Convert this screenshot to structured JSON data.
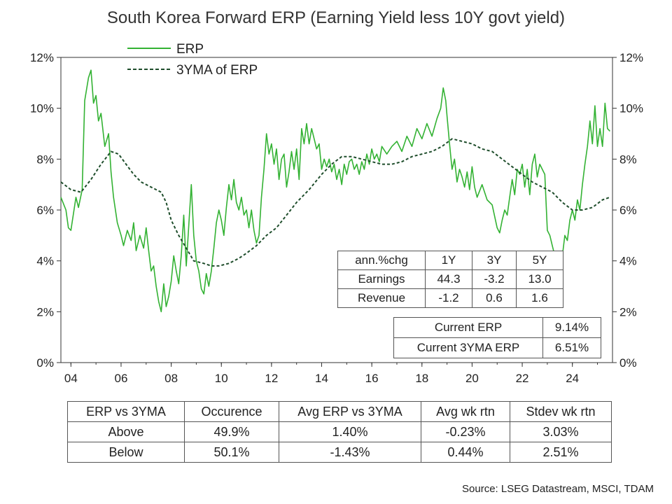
{
  "chart_data": {
    "type": "line",
    "title": "South Korea Forward ERP (Earning Yield less 10Y govt yield)",
    "x_ticks": [
      "04",
      "06",
      "08",
      "10",
      "12",
      "14",
      "16",
      "18",
      "20",
      "22",
      "24"
    ],
    "x_range": [
      2003.6,
      2025.6
    ],
    "y_ticks": [
      "0%",
      "2%",
      "4%",
      "6%",
      "8%",
      "10%",
      "12%"
    ],
    "ylim": [
      0,
      12
    ],
    "legend_position": "top-left",
    "series": [
      {
        "name": "ERP",
        "color": "#33b233",
        "style": "solid",
        "points": [
          [
            2003.6,
            6.5
          ],
          [
            2003.8,
            6.0
          ],
          [
            2003.9,
            5.3
          ],
          [
            2004.0,
            5.2
          ],
          [
            2004.2,
            6.5
          ],
          [
            2004.3,
            6.1
          ],
          [
            2004.45,
            6.8
          ],
          [
            2004.55,
            10.3
          ],
          [
            2004.7,
            11.2
          ],
          [
            2004.8,
            11.5
          ],
          [
            2004.9,
            10.2
          ],
          [
            2005.0,
            10.5
          ],
          [
            2005.1,
            9.5
          ],
          [
            2005.2,
            9.8
          ],
          [
            2005.35,
            8.5
          ],
          [
            2005.5,
            9.0
          ],
          [
            2005.6,
            7.5
          ],
          [
            2005.7,
            6.5
          ],
          [
            2005.85,
            5.5
          ],
          [
            2006.0,
            5.0
          ],
          [
            2006.1,
            4.6
          ],
          [
            2006.25,
            5.2
          ],
          [
            2006.4,
            4.8
          ],
          [
            2006.5,
            5.5
          ],
          [
            2006.6,
            4.4
          ],
          [
            2006.75,
            5.0
          ],
          [
            2006.9,
            4.5
          ],
          [
            2007.0,
            5.3
          ],
          [
            2007.1,
            4.4
          ],
          [
            2007.2,
            3.6
          ],
          [
            2007.3,
            3.8
          ],
          [
            2007.4,
            3.0
          ],
          [
            2007.5,
            2.4
          ],
          [
            2007.6,
            2.0
          ],
          [
            2007.7,
            3.1
          ],
          [
            2007.8,
            2.2
          ],
          [
            2007.9,
            2.6
          ],
          [
            2008.0,
            3.2
          ],
          [
            2008.1,
            4.2
          ],
          [
            2008.2,
            3.6
          ],
          [
            2008.3,
            3.1
          ],
          [
            2008.4,
            4.2
          ],
          [
            2008.5,
            5.8
          ],
          [
            2008.6,
            3.8
          ],
          [
            2008.7,
            5.4
          ],
          [
            2008.8,
            7.0
          ],
          [
            2008.9,
            5.0
          ],
          [
            2009.0,
            4.0
          ],
          [
            2009.1,
            3.6
          ],
          [
            2009.2,
            2.9
          ],
          [
            2009.3,
            2.7
          ],
          [
            2009.4,
            3.5
          ],
          [
            2009.5,
            3.0
          ],
          [
            2009.6,
            3.6
          ],
          [
            2009.7,
            4.5
          ],
          [
            2009.8,
            5.5
          ],
          [
            2009.9,
            6.0
          ],
          [
            2010.0,
            5.6
          ],
          [
            2010.1,
            5.0
          ],
          [
            2010.2,
            6.1
          ],
          [
            2010.3,
            7.0
          ],
          [
            2010.4,
            6.4
          ],
          [
            2010.5,
            7.2
          ],
          [
            2010.6,
            6.3
          ],
          [
            2010.7,
            6.0
          ],
          [
            2010.8,
            6.5
          ],
          [
            2010.9,
            5.8
          ],
          [
            2011.0,
            6.0
          ],
          [
            2011.1,
            5.3
          ],
          [
            2011.2,
            6.0
          ],
          [
            2011.3,
            5.2
          ],
          [
            2011.4,
            4.7
          ],
          [
            2011.5,
            5.0
          ],
          [
            2011.6,
            6.5
          ],
          [
            2011.7,
            7.6
          ],
          [
            2011.8,
            9.0
          ],
          [
            2011.9,
            8.2
          ],
          [
            2012.0,
            8.6
          ],
          [
            2012.1,
            7.8
          ],
          [
            2012.2,
            8.4
          ],
          [
            2012.3,
            7.2
          ],
          [
            2012.4,
            8.0
          ],
          [
            2012.5,
            8.2
          ],
          [
            2012.6,
            6.9
          ],
          [
            2012.7,
            7.5
          ],
          [
            2012.8,
            8.3
          ],
          [
            2012.9,
            7.6
          ],
          [
            2013.0,
            8.4
          ],
          [
            2013.1,
            7.2
          ],
          [
            2013.2,
            9.2
          ],
          [
            2013.3,
            8.6
          ],
          [
            2013.4,
            9.4
          ],
          [
            2013.5,
            8.6
          ],
          [
            2013.6,
            9.2
          ],
          [
            2013.7,
            8.8
          ],
          [
            2013.8,
            8.4
          ],
          [
            2013.9,
            8.6
          ],
          [
            2014.0,
            7.6
          ],
          [
            2014.1,
            8.0
          ],
          [
            2014.2,
            7.7
          ],
          [
            2014.3,
            8.0
          ],
          [
            2014.4,
            7.5
          ],
          [
            2014.5,
            7.8
          ],
          [
            2014.6,
            7.2
          ],
          [
            2014.7,
            7.6
          ],
          [
            2014.8,
            7.0
          ],
          [
            2014.9,
            7.8
          ],
          [
            2015.0,
            7.4
          ],
          [
            2015.1,
            7.9
          ],
          [
            2015.2,
            8.0
          ],
          [
            2015.3,
            7.6
          ],
          [
            2015.4,
            7.8
          ],
          [
            2015.5,
            7.4
          ],
          [
            2015.6,
            7.9
          ],
          [
            2015.7,
            7.6
          ],
          [
            2015.8,
            8.2
          ],
          [
            2015.9,
            7.8
          ],
          [
            2016.0,
            8.4
          ],
          [
            2016.1,
            8.0
          ],
          [
            2016.2,
            8.2
          ],
          [
            2016.3,
            7.9
          ],
          [
            2016.4,
            8.5
          ],
          [
            2016.6,
            8.2
          ],
          [
            2016.8,
            8.5
          ],
          [
            2017.0,
            8.7
          ],
          [
            2017.2,
            8.3
          ],
          [
            2017.4,
            8.9
          ],
          [
            2017.6,
            8.5
          ],
          [
            2017.8,
            9.2
          ],
          [
            2018.0,
            8.8
          ],
          [
            2018.2,
            9.4
          ],
          [
            2018.4,
            8.9
          ],
          [
            2018.6,
            9.6
          ],
          [
            2018.75,
            10.0
          ],
          [
            2018.85,
            10.8
          ],
          [
            2018.95,
            10.3
          ],
          [
            2019.0,
            9.7
          ],
          [
            2019.1,
            8.6
          ],
          [
            2019.2,
            7.6
          ],
          [
            2019.3,
            8.0
          ],
          [
            2019.4,
            7.1
          ],
          [
            2019.5,
            7.6
          ],
          [
            2019.6,
            7.3
          ],
          [
            2019.7,
            6.9
          ],
          [
            2019.8,
            7.5
          ],
          [
            2019.9,
            6.8
          ],
          [
            2020.0,
            7.7
          ],
          [
            2020.1,
            6.9
          ],
          [
            2020.2,
            6.5
          ],
          [
            2020.4,
            7.0
          ],
          [
            2020.6,
            6.4
          ],
          [
            2020.8,
            6.2
          ],
          [
            2021.0,
            5.3
          ],
          [
            2021.1,
            5.1
          ],
          [
            2021.2,
            5.6
          ],
          [
            2021.3,
            6.0
          ],
          [
            2021.4,
            5.8
          ],
          [
            2021.5,
            6.5
          ],
          [
            2021.6,
            7.2
          ],
          [
            2021.7,
            6.6
          ],
          [
            2021.8,
            7.6
          ],
          [
            2021.9,
            7.4
          ],
          [
            2022.0,
            7.8
          ],
          [
            2022.1,
            6.9
          ],
          [
            2022.2,
            7.6
          ],
          [
            2022.3,
            6.6
          ],
          [
            2022.4,
            7.8
          ],
          [
            2022.5,
            8.2
          ],
          [
            2022.6,
            7.3
          ],
          [
            2022.7,
            7.8
          ],
          [
            2022.8,
            7.6
          ],
          [
            2022.9,
            7.4
          ],
          [
            2023.0,
            5.2
          ],
          [
            2023.1,
            5.0
          ],
          [
            2023.2,
            4.6
          ],
          [
            2023.3,
            4.2
          ],
          [
            2023.4,
            3.8
          ],
          [
            2023.5,
            3.5
          ],
          [
            2023.6,
            4.2
          ],
          [
            2023.7,
            5.0
          ],
          [
            2023.8,
            4.8
          ],
          [
            2023.9,
            5.6
          ],
          [
            2024.0,
            6.0
          ],
          [
            2024.1,
            5.6
          ],
          [
            2024.2,
            6.4
          ],
          [
            2024.3,
            6.0
          ],
          [
            2024.4,
            7.0
          ],
          [
            2024.5,
            7.8
          ],
          [
            2024.6,
            8.5
          ],
          [
            2024.7,
            9.5
          ],
          [
            2024.8,
            8.6
          ],
          [
            2024.9,
            10.1
          ],
          [
            2025.0,
            8.5
          ],
          [
            2025.1,
            9.2
          ],
          [
            2025.2,
            8.5
          ],
          [
            2025.3,
            10.2
          ],
          [
            2025.4,
            9.2
          ],
          [
            2025.5,
            9.1
          ]
        ]
      },
      {
        "name": "3YMA of ERP",
        "color": "#1e4d2b",
        "style": "dashed",
        "points": [
          [
            2003.6,
            7.1
          ],
          [
            2004.0,
            6.8
          ],
          [
            2004.4,
            6.7
          ],
          [
            2004.8,
            7.2
          ],
          [
            2005.2,
            7.8
          ],
          [
            2005.6,
            8.3
          ],
          [
            2005.9,
            8.2
          ],
          [
            2006.2,
            7.8
          ],
          [
            2006.5,
            7.4
          ],
          [
            2006.8,
            7.1
          ],
          [
            2007.2,
            6.9
          ],
          [
            2007.6,
            6.7
          ],
          [
            2007.8,
            6.3
          ],
          [
            2008.0,
            5.6
          ],
          [
            2008.3,
            5.0
          ],
          [
            2008.6,
            4.5
          ],
          [
            2008.9,
            4.0
          ],
          [
            2009.3,
            3.9
          ],
          [
            2009.6,
            3.8
          ],
          [
            2009.9,
            3.8
          ],
          [
            2010.3,
            3.9
          ],
          [
            2010.7,
            4.1
          ],
          [
            2011.0,
            4.3
          ],
          [
            2011.4,
            4.6
          ],
          [
            2011.8,
            5.0
          ],
          [
            2012.2,
            5.3
          ],
          [
            2012.6,
            5.8
          ],
          [
            2013.0,
            6.3
          ],
          [
            2013.5,
            6.8
          ],
          [
            2014.0,
            7.4
          ],
          [
            2014.4,
            7.8
          ],
          [
            2014.8,
            8.1
          ],
          [
            2015.2,
            8.1
          ],
          [
            2015.6,
            8.0
          ],
          [
            2016.0,
            7.9
          ],
          [
            2016.4,
            7.8
          ],
          [
            2016.8,
            7.8
          ],
          [
            2017.2,
            7.9
          ],
          [
            2017.6,
            8.1
          ],
          [
            2018.0,
            8.2
          ],
          [
            2018.4,
            8.3
          ],
          [
            2018.8,
            8.5
          ],
          [
            2019.2,
            8.8
          ],
          [
            2019.6,
            8.7
          ],
          [
            2020.0,
            8.6
          ],
          [
            2020.4,
            8.4
          ],
          [
            2020.8,
            8.3
          ],
          [
            2021.2,
            8.0
          ],
          [
            2021.6,
            7.7
          ],
          [
            2022.0,
            7.4
          ],
          [
            2022.4,
            7.1
          ],
          [
            2022.8,
            6.9
          ],
          [
            2023.2,
            6.7
          ],
          [
            2023.6,
            6.3
          ],
          [
            2024.0,
            6.0
          ],
          [
            2024.4,
            6.0
          ],
          [
            2024.8,
            6.1
          ],
          [
            2025.2,
            6.4
          ],
          [
            2025.5,
            6.5
          ]
        ]
      }
    ]
  },
  "growth_table": {
    "header": [
      "ann.%chg",
      "1Y",
      "3Y",
      "5Y"
    ],
    "rows": [
      [
        "Earnings",
        "44.3",
        "-3.2",
        "13.0"
      ],
      [
        "Revenue",
        "-1.2",
        "0.6",
        "1.6"
      ]
    ]
  },
  "current_table": {
    "rows": [
      [
        "Current ERP",
        "9.14%"
      ],
      [
        "Current 3YMA ERP",
        "6.51%"
      ]
    ]
  },
  "summary_table": {
    "header": [
      "ERP vs 3YMA",
      "Occurence",
      "Avg ERP vs 3YMA",
      "Avg wk rtn",
      "Stdev wk rtn"
    ],
    "rows": [
      [
        "Above",
        "49.9%",
        "1.40%",
        "-0.23%",
        "3.03%"
      ],
      [
        "Below",
        "50.1%",
        "-1.43%",
        "0.44%",
        "2.51%"
      ]
    ]
  },
  "source": "Source: LSEG Datastream, MSCI, TDAM"
}
